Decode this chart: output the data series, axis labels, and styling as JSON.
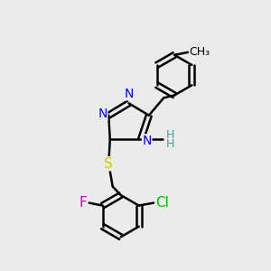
{
  "background_color": "#ebebeb",
  "bond_color": "#000000",
  "bond_width": 1.8,
  "atom_colors": {
    "N": "#0000ff",
    "S": "#cccc00",
    "F": "#cc00cc",
    "Cl": "#00bb00",
    "H": "#4d9999"
  },
  "font_size": 10,
  "fig_size": [
    3.0,
    3.0
  ],
  "dpi": 100
}
